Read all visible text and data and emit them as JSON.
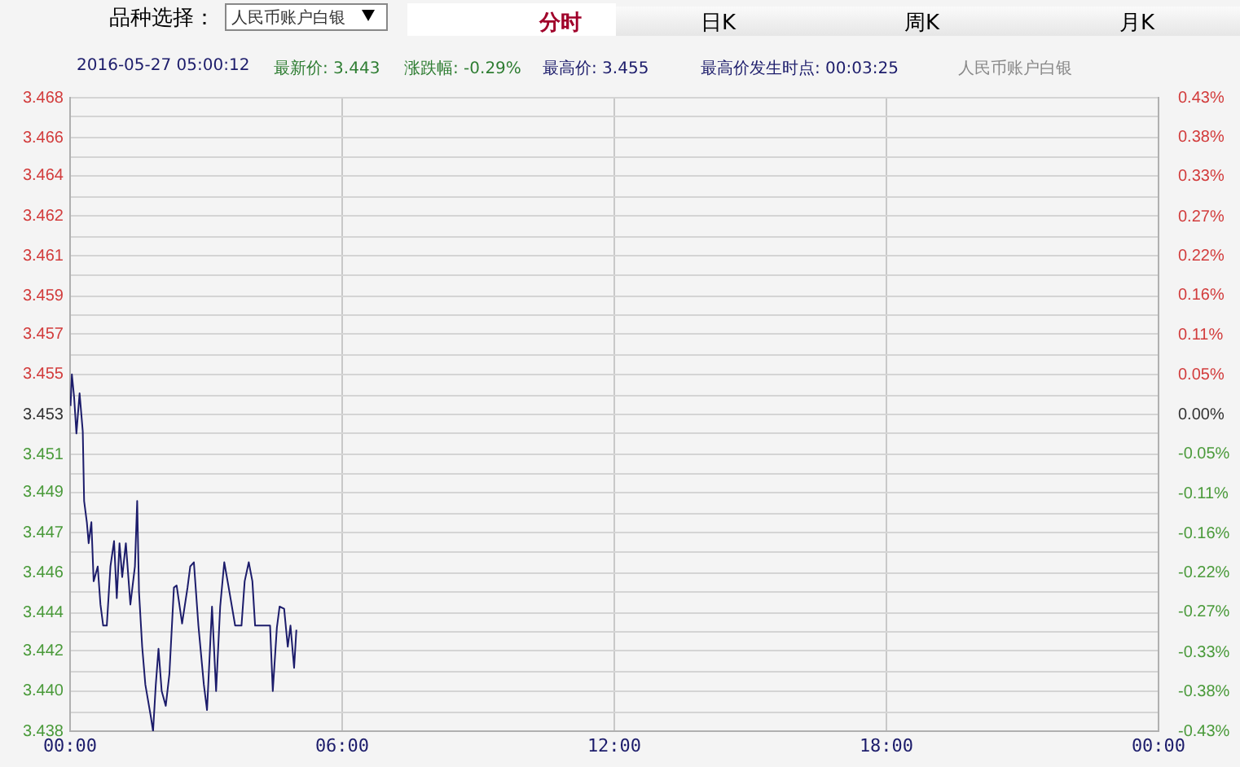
{
  "chart_data": {
    "type": "line",
    "annotations": [
      "品种选择：",
      "人民币账户白银",
      "分时",
      "日K",
      "周K",
      "月K",
      "2016-05-27 05:00:12",
      "最新价: 3.443",
      "涨跌幅: -0.29%",
      "最高价: 3.455",
      "最高价发生时点: 00:03:25",
      "人民币账户白银"
    ],
    "x": [
      0.01,
      0.04,
      0.09,
      0.14,
      0.21,
      0.28,
      0.31,
      0.37,
      0.41,
      0.47,
      0.52,
      0.61,
      0.67,
      0.73,
      0.81,
      0.89,
      0.97,
      1.03,
      1.09,
      1.15,
      1.23,
      1.33,
      1.43,
      1.48,
      1.52,
      1.59,
      1.66,
      1.78,
      1.83,
      1.89,
      1.95,
      2.02,
      2.11,
      2.19,
      2.29,
      2.35,
      2.47,
      2.59,
      2.65,
      2.73,
      2.83,
      2.95,
      3.02,
      3.13,
      3.22,
      3.31,
      3.4,
      3.49,
      3.64,
      3.78,
      3.85,
      3.94,
      4.02,
      4.08,
      4.41,
      4.47,
      4.56,
      4.62,
      4.72,
      4.8,
      4.86,
      4.94,
      4.99
    ],
    "series": [
      {
        "color": "#1c1c6b",
        "values": [
          3.4534,
          3.4549,
          3.4538,
          3.4521,
          3.454,
          3.4522,
          3.4489,
          3.4479,
          3.4469,
          3.4479,
          3.4451,
          3.4458,
          3.444,
          3.443,
          3.443,
          3.4458,
          3.447,
          3.4443,
          3.4469,
          3.4453,
          3.4469,
          3.444,
          3.4458,
          3.4489,
          3.4446,
          3.442,
          3.4402,
          3.4387,
          3.438,
          3.4402,
          3.4419,
          3.4399,
          3.4392,
          3.4407,
          3.4448,
          3.4449,
          3.4431,
          3.4448,
          3.4458,
          3.446,
          3.443,
          3.4402,
          3.439,
          3.4439,
          3.4399,
          3.4439,
          3.446,
          3.4449,
          3.443,
          3.443,
          3.4451,
          3.446,
          3.4451,
          3.443,
          3.443,
          3.4399,
          3.4429,
          3.4439,
          3.4438,
          3.442,
          3.443,
          3.441,
          3.4428
        ]
      }
    ],
    "xlim": [
      0,
      24
    ],
    "xticks": [
      {
        "value": 0,
        "label": "00:00"
      },
      {
        "value": 6,
        "label": "06:00"
      },
      {
        "value": 12,
        "label": "12:00"
      },
      {
        "value": 18,
        "label": "18:00"
      },
      {
        "value": 24,
        "label": "00:00"
      }
    ],
    "ylim": [
      3.438,
      3.468
    ],
    "yticks": [
      3.438,
      {
        "value": 3.4389,
        "label": null
      },
      {
        "value": 3.4399,
        "label": "3.440"
      },
      {
        "value": 3.4408,
        "label": null
      },
      {
        "value": 3.4418,
        "label": "3.442"
      },
      {
        "value": 3.4427,
        "label": null
      },
      {
        "value": 3.4436,
        "label": "3.444"
      },
      {
        "value": 3.4446,
        "label": null
      },
      {
        "value": 3.4455,
        "label": "3.446"
      },
      {
        "value": 3.4465,
        "label": null
      },
      {
        "value": 3.4474,
        "label": "3.447"
      },
      {
        "value": 3.4483,
        "label": null
      },
      {
        "value": 3.4493,
        "label": "3.449"
      },
      {
        "value": 3.4502,
        "label": null
      },
      {
        "value": 3.4511,
        "label": "3.451"
      },
      {
        "value": 3.4521,
        "label": null
      },
      {
        "value": 3.453,
        "label": "3.453"
      },
      {
        "value": 3.4539,
        "label": null
      },
      {
        "value": 3.4549,
        "label": "3.455"
      },
      {
        "value": 3.4558,
        "label": null
      },
      {
        "value": 3.4568,
        "label": "3.457"
      },
      {
        "value": 3.4577,
        "label": null
      },
      {
        "value": 3.4586,
        "label": "3.459"
      },
      {
        "value": 3.4596,
        "label": null
      },
      {
        "value": 3.4605,
        "label": "3.461"
      },
      {
        "value": 3.4614,
        "label": null
      },
      {
        "value": 3.4624,
        "label": "3.462"
      },
      {
        "value": 3.4633,
        "label": null
      },
      {
        "value": 3.4643,
        "label": "3.464"
      },
      {
        "value": 3.4652,
        "label": null
      },
      {
        "value": 3.4661,
        "label": "3.466"
      },
      {
        "value": 3.4671,
        "label": null
      },
      3.468
    ],
    "y2lim": [
      -0.434,
      0.434
    ],
    "y2ticks": [
      {
        "value": -0.434,
        "label": "-0.43%"
      },
      {
        "value": -0.38,
        "label": "-0.38%"
      },
      {
        "value": -0.326,
        "label": "-0.33%"
      },
      {
        "value": -0.271,
        "label": "-0.27%"
      },
      {
        "value": -0.217,
        "label": "-0.22%"
      },
      {
        "value": -0.163,
        "label": "-0.16%"
      },
      {
        "value": -0.109,
        "label": "-0.11%"
      },
      {
        "value": -0.054,
        "label": "-0.05%"
      },
      {
        "value": 0,
        "label": "0.00%"
      },
      {
        "value": 0.054,
        "label": "0.05%"
      },
      {
        "value": 0.109,
        "label": "0.11%"
      },
      {
        "value": 0.163,
        "label": "0.16%"
      },
      {
        "value": 0.217,
        "label": "0.22%"
      },
      {
        "value": 0.271,
        "label": "0.27%"
      },
      {
        "value": 0.326,
        "label": "0.33%"
      },
      {
        "value": 0.38,
        "label": "0.38%"
      },
      {
        "value": 0.434,
        "label": "0.43%"
      }
    ],
    "grid": true,
    "legend": false,
    "marker": "none",
    "line_style": "solid"
  }
}
